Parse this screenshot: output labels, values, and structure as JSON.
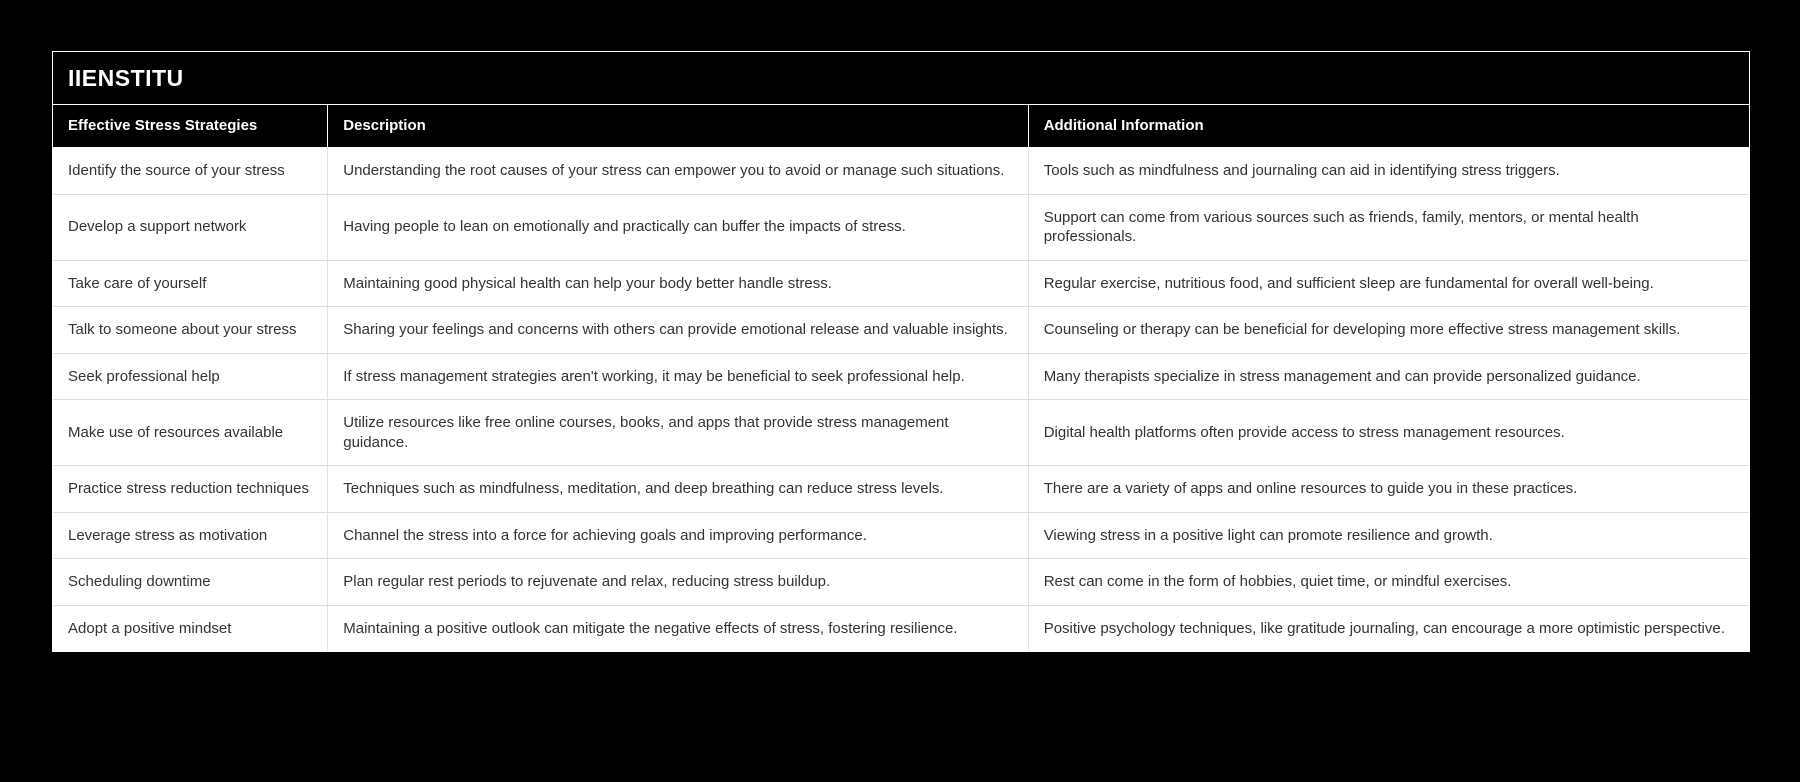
{
  "page": {
    "background_color": "#000000"
  },
  "header": {
    "brand": "IIENSTITU"
  },
  "colors": {
    "card_border": "#ffffff",
    "header_bg": "#000000",
    "header_text": "#ffffff",
    "body_bg": "#ffffff",
    "body_text": "#333333",
    "row_divider": "#dddddd"
  },
  "table": {
    "columns": [
      "Effective Stress Strategies",
      "Description",
      "Additional Information"
    ],
    "rows": [
      {
        "strategy": "Identify the source of your stress",
        "description": "Understanding the root causes of your stress can empower you to avoid or manage such situations.",
        "additional": "Tools such as mindfulness and journaling can aid in identifying stress triggers."
      },
      {
        "strategy": "Develop a support network",
        "description": "Having people to lean on emotionally and practically can buffer the impacts of stress.",
        "additional": "Support can come from various sources such as friends, family, mentors, or mental health professionals."
      },
      {
        "strategy": "Take care of yourself",
        "description": "Maintaining good physical health can help your body better handle stress.",
        "additional": "Regular exercise, nutritious food, and sufficient sleep are fundamental for overall well-being."
      },
      {
        "strategy": "Talk to someone about your stress",
        "description": "Sharing your feelings and concerns with others can provide emotional release and valuable insights.",
        "additional": "Counseling or therapy can be beneficial for developing more effective stress management skills."
      },
      {
        "strategy": "Seek professional help",
        "description": "If stress management strategies aren't working, it may be beneficial to seek professional help.",
        "additional": "Many therapists specialize in stress management and can provide personalized guidance."
      },
      {
        "strategy": "Make use of resources available",
        "description": "Utilize resources like free online courses, books, and apps that provide stress management guidance.",
        "additional": "Digital health platforms often provide access to stress management resources."
      },
      {
        "strategy": "Practice stress reduction techniques",
        "description": "Techniques such as mindfulness, meditation, and deep breathing can reduce stress levels.",
        "additional": "There are a variety of apps and online resources to guide you in these practices."
      },
      {
        "strategy": "Leverage stress as motivation",
        "description": "Channel the stress into a force for achieving goals and improving performance.",
        "additional": "Viewing stress in a positive light can promote resilience and growth."
      },
      {
        "strategy": "Scheduling downtime",
        "description": "Plan regular rest periods to rejuvenate and relax, reducing stress buildup.",
        "additional": "Rest can come in the form of hobbies, quiet time, or mindful exercises."
      },
      {
        "strategy": "Adopt a positive mindset",
        "description": "Maintaining a positive outlook can mitigate the negative effects of stress, fostering resilience.",
        "additional": "Positive psychology techniques, like gratitude journaling, can encourage a more optimistic perspective."
      }
    ]
  }
}
